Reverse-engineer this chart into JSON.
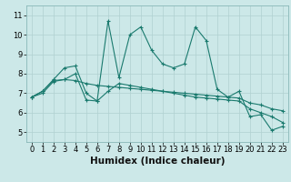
{
  "title": "",
  "xlabel": "Humidex (Indice chaleur)",
  "ylabel": "",
  "background_color": "#cce8e8",
  "grid_color": "#b0d0d0",
  "line_color": "#1a7a6e",
  "xlim": [
    -0.5,
    23.5
  ],
  "ylim": [
    4.5,
    11.5
  ],
  "xticks": [
    0,
    1,
    2,
    3,
    4,
    5,
    6,
    7,
    8,
    9,
    10,
    11,
    12,
    13,
    14,
    15,
    16,
    17,
    18,
    19,
    20,
    21,
    22,
    23
  ],
  "yticks": [
    5,
    6,
    7,
    8,
    9,
    10,
    11
  ],
  "line1_x": [
    0,
    1,
    2,
    3,
    4,
    5,
    6,
    7,
    8,
    9,
    10,
    11,
    12,
    13,
    14,
    15,
    16,
    17,
    18,
    19,
    20,
    21,
    22,
    23
  ],
  "line1_y": [
    6.8,
    7.1,
    7.7,
    8.3,
    8.4,
    7.0,
    6.6,
    10.7,
    7.8,
    10.0,
    10.4,
    9.2,
    8.5,
    8.3,
    8.5,
    10.4,
    9.7,
    7.2,
    6.8,
    7.1,
    5.8,
    5.9,
    5.1,
    5.3
  ],
  "line2_x": [
    0,
    1,
    2,
    3,
    4,
    5,
    6,
    7,
    8,
    9,
    10,
    11,
    12,
    13,
    14,
    15,
    16,
    17,
    18,
    19,
    20,
    21,
    22,
    23
  ],
  "line2_y": [
    6.8,
    7.1,
    7.65,
    7.7,
    7.65,
    7.5,
    7.4,
    7.35,
    7.3,
    7.25,
    7.2,
    7.15,
    7.1,
    7.05,
    7.0,
    6.95,
    6.9,
    6.85,
    6.8,
    6.75,
    6.5,
    6.4,
    6.2,
    6.1
  ],
  "line3_x": [
    0,
    1,
    2,
    3,
    4,
    5,
    6,
    7,
    8,
    9,
    10,
    11,
    12,
    13,
    14,
    15,
    16,
    17,
    18,
    19,
    20,
    21,
    22,
    23
  ],
  "line3_y": [
    6.8,
    7.0,
    7.6,
    7.7,
    8.0,
    6.65,
    6.6,
    7.1,
    7.5,
    7.4,
    7.3,
    7.2,
    7.1,
    7.0,
    6.9,
    6.8,
    6.75,
    6.7,
    6.65,
    6.6,
    6.2,
    6.0,
    5.8,
    5.5
  ],
  "tick_fontsize": 6.0,
  "label_fontsize": 7.5,
  "marker_size": 3,
  "line_width": 0.8
}
